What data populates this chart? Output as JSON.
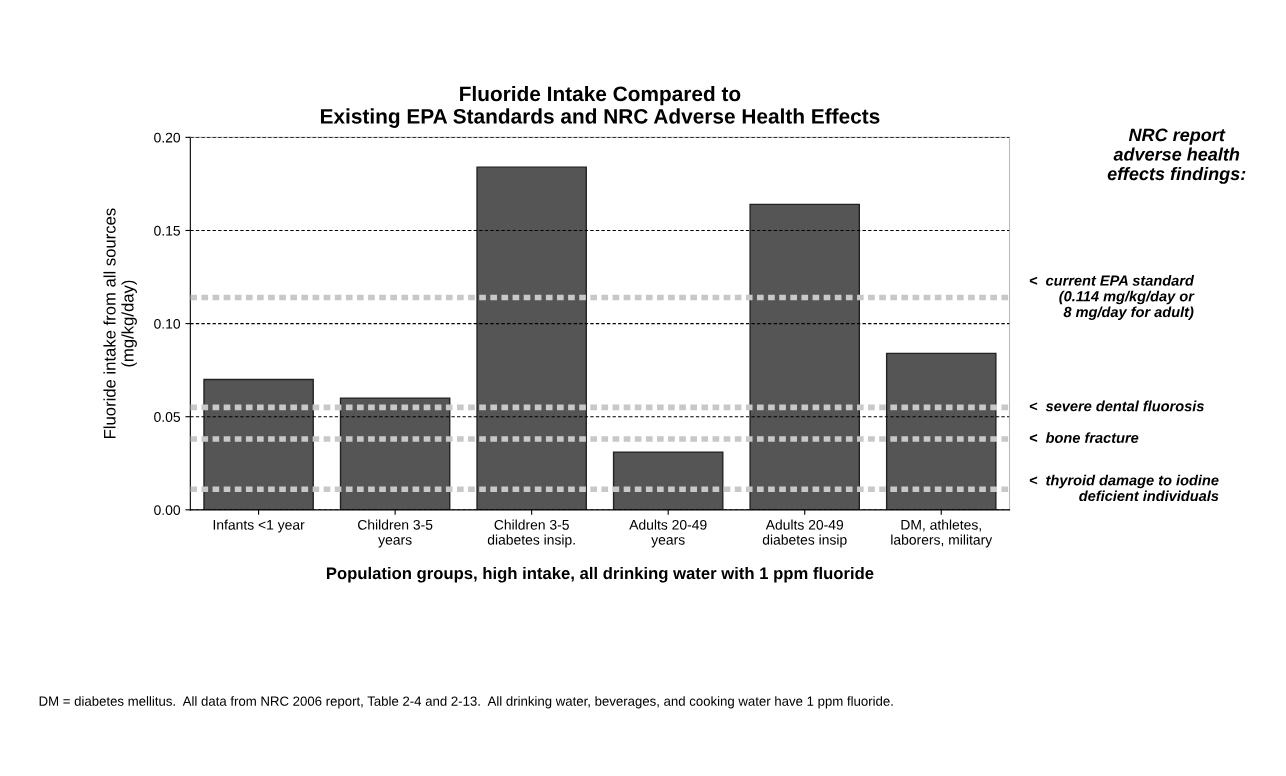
{
  "chart_data": {
    "type": "bar",
    "title": "Fluoride Intake Compared to\nExisting EPA Standards and NRC Adverse Health Effects",
    "xlabel": "Population groups, high intake, all drinking water with 1 ppm fluoride",
    "ylabel": "Fluoride intake from all sources\n(mg/kg/day)",
    "categories": [
      "Infants <1 year",
      "Children 3-5\nyears",
      "Children 3-5\ndiabetes insip.",
      "Adults 20-49\nyears",
      "Adults 20-49\ndiabetes insip",
      "DM, athletes,\nlaborers, military"
    ],
    "values": [
      0.07,
      0.06,
      0.184,
      0.031,
      0.164,
      0.084
    ],
    "color": "#555555",
    "ylim": [
      0,
      0.2
    ],
    "yticks": [
      {
        "value": 0,
        "label": "0.00"
      },
      {
        "value": 0.05,
        "label": "0.05"
      },
      {
        "value": 0.1,
        "label": "0.10"
      },
      {
        "value": 0.15,
        "label": "0.15"
      },
      {
        "value": 0.2,
        "label": "0.20"
      }
    ],
    "grid": "y",
    "ref_lines": [
      {
        "axis": "y",
        "value": 0.114,
        "label": "<  current EPA standard\n(0.114 mg/kg/day or\n8 mg/day for adult)",
        "color": "#c8c8c8",
        "line_style": "dotted"
      },
      {
        "axis": "y",
        "value": 0.055,
        "label": "<  severe dental fluorosis",
        "color": "#c8c8c8",
        "line_style": "dotted"
      },
      {
        "axis": "y",
        "value": 0.038,
        "label": "<  bone fracture",
        "color": "#c8c8c8",
        "line_style": "dotted"
      },
      {
        "axis": "y",
        "value": 0.011,
        "label": "<  thyroid damage to iodine\ndeficient individuals",
        "color": "#c8c8c8",
        "line_style": "dotted"
      }
    ],
    "annotations": [
      "NRC report\nadverse health\neffects findings:",
      "DM = diabetes mellitus.  All data from NRC 2006 report, Table 2-4 and 2-13.  All drinking water, beverages, and cooking water have 1 ppm fluoride."
    ]
  }
}
